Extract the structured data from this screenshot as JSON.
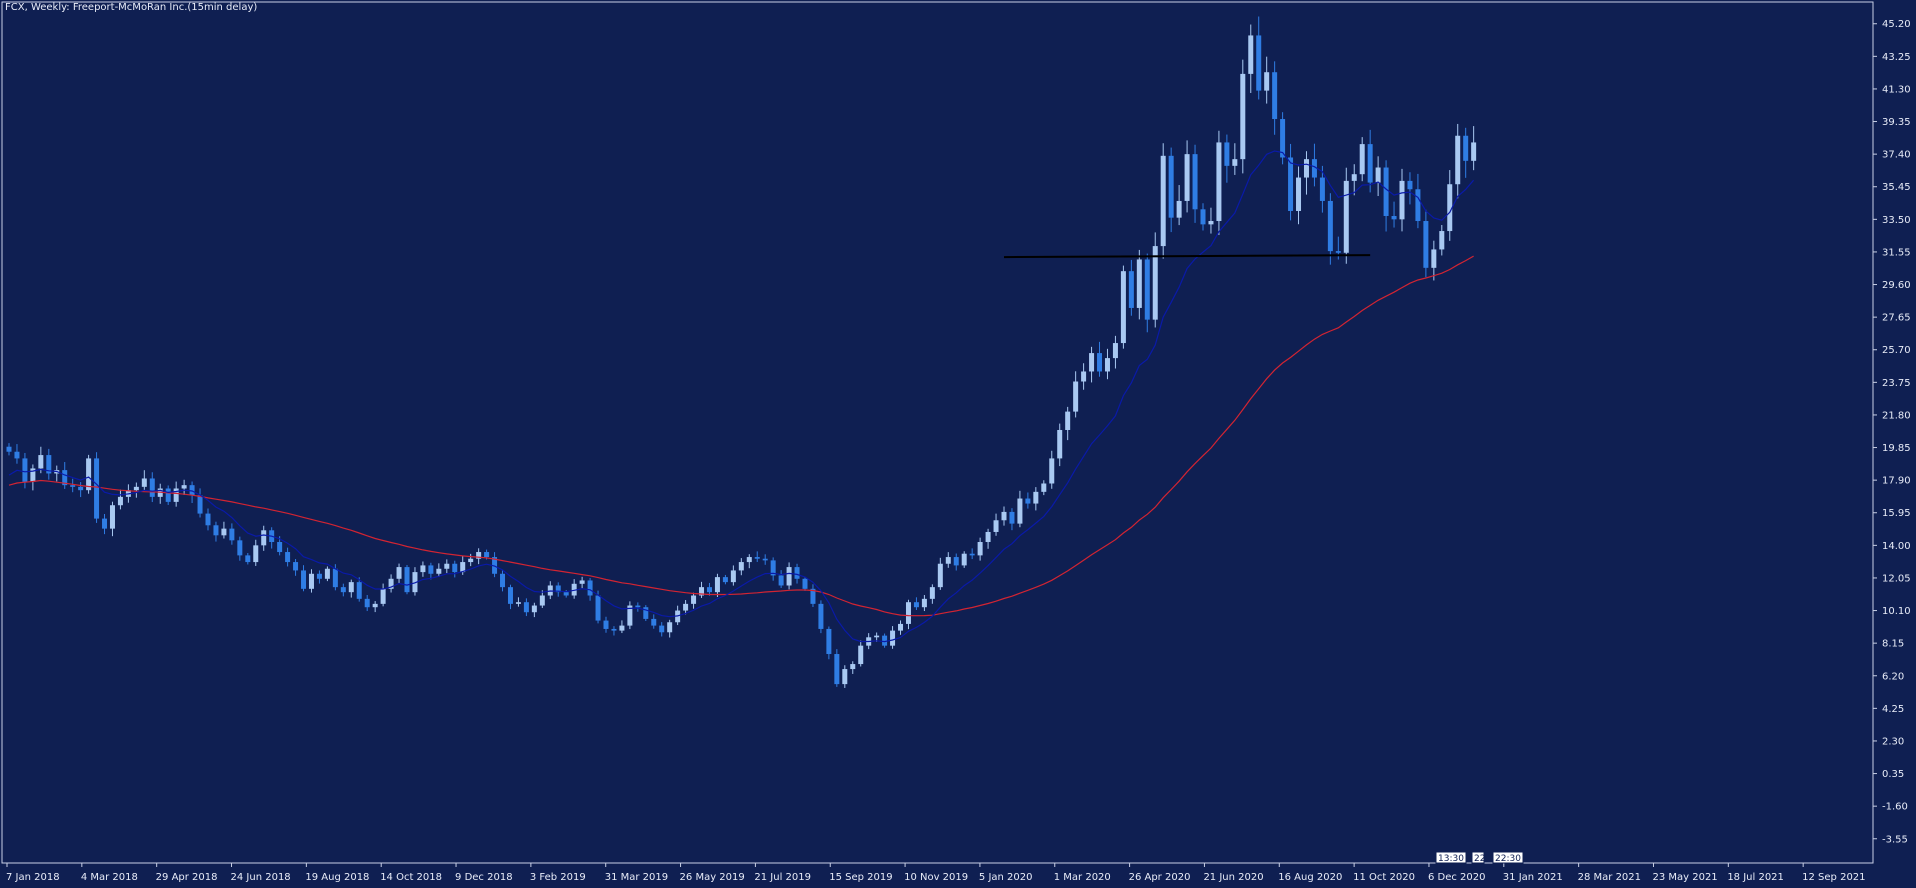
{
  "title": "FCX, Weekly:  Freeport-McMoRan Inc.(15min delay)",
  "colors": {
    "background": "#0f1f52",
    "frame": "#c8cfe6",
    "text": "#e8ecf8",
    "bull": "#a9c9f2",
    "bear": "#2f7de4",
    "ma_fast": "#0a1aa8",
    "ma_slow": "#d22432",
    "support": "#000000"
  },
  "time_marker": {
    "boxes": [
      "13:30",
      "22",
      "22:30"
    ]
  },
  "chart_data": {
    "type": "candlestick",
    "title": "FCX, Weekly:  Freeport-McMoRan Inc.(15min delay)",
    "ylim": [
      -5.0,
      46.5
    ],
    "y_ticks": [
      "45.20",
      "43.25",
      "41.30",
      "39.35",
      "37.40",
      "35.45",
      "33.50",
      "31.55",
      "29.60",
      "27.65",
      "25.70",
      "23.75",
      "21.80",
      "19.85",
      "17.90",
      "15.95",
      "14.00",
      "12.05",
      "10.10",
      "8.15",
      "6.20",
      "4.25",
      "2.30",
      "0.35",
      "-1.60",
      "-3.55"
    ],
    "x_labels": [
      "7 Jan 2018",
      "4 Mar 2018",
      "29 Apr 2018",
      "24 Jun 2018",
      "19 Aug 2018",
      "14 Oct 2018",
      "9 Dec 2018",
      "3 Feb 2019",
      "31 Mar 2019",
      "26 May 2019",
      "21 Jul 2019",
      "15 Sep 2019",
      "10 Nov 2019",
      "5 Jan 2020",
      "1 Mar 2020",
      "26 Apr 2020",
      "21 Jun 2020",
      "16 Aug 2020",
      "11 Oct 2020",
      "6 Dec 2020",
      "31 Jan 2021",
      "28 Mar 2021",
      "23 May 2021",
      "18 Jul 2021",
      "12 Sep 2021"
    ],
    "close": [
      19.6,
      19.2,
      17.8,
      18.6,
      19.4,
      18.3,
      18.5,
      17.6,
      17.5,
      17.3,
      19.2,
      15.6,
      15.0,
      16.4,
      16.9,
      17.3,
      17.5,
      18.0,
      16.9,
      17.4,
      16.6,
      17.4,
      17.6,
      17.0,
      15.9,
      15.2,
      14.6,
      15.0,
      14.3,
      13.4,
      13.0,
      14.0,
      14.9,
      14.2,
      13.6,
      13.0,
      12.5,
      11.4,
      12.3,
      12.0,
      12.6,
      11.5,
      11.2,
      11.8,
      10.8,
      10.3,
      10.5,
      11.4,
      12.0,
      12.7,
      11.2,
      12.4,
      12.8,
      12.3,
      12.6,
      12.9,
      12.4,
      13.0,
      13.2,
      13.6,
      13.3,
      12.3,
      11.5,
      10.5,
      10.6,
      10.0,
      10.4,
      11.0,
      11.6,
      11.2,
      11.0,
      11.7,
      11.9,
      11.0,
      9.5,
      9.0,
      8.9,
      9.2,
      10.4,
      10.3,
      9.6,
      9.2,
      8.8,
      9.4,
      10.1,
      10.5,
      11.0,
      11.5,
      11.2,
      12.1,
      11.8,
      12.5,
      13.0,
      13.3,
      13.2,
      13.1,
      12.2,
      11.6,
      12.7,
      12.0,
      11.4,
      10.5,
      9.0,
      7.5,
      5.7,
      6.6,
      6.9,
      8.0,
      8.5,
      8.6,
      8.0,
      8.9,
      9.3,
      10.6,
      10.3,
      10.8,
      11.5,
      12.9,
      13.3,
      12.8,
      13.5,
      13.4,
      14.2,
      14.8,
      15.5,
      16.0,
      15.3,
      16.8,
      16.5,
      17.2,
      17.7,
      19.2,
      20.9,
      22.0,
      23.8,
      24.4,
      25.5,
      24.4,
      25.2,
      26.1,
      30.4,
      28.2,
      31.1,
      27.5,
      31.9,
      37.3,
      33.6,
      34.6,
      37.4,
      34.1,
      33.2,
      33.4,
      38.1,
      36.7,
      37.1,
      42.2,
      44.5,
      41.2,
      42.3,
      39.5,
      37.2,
      34.0,
      36.0,
      37.1,
      36.0,
      34.6,
      31.6,
      31.5,
      35.8,
      36.2,
      38.0,
      35.7,
      36.6,
      33.7,
      33.5,
      35.8,
      35.3,
      33.4,
      30.6,
      31.7,
      32.8,
      35.6,
      38.5,
      37.0,
      38.1
    ],
    "series": [
      {
        "name": "",
        "values": [
          17.6,
          17.73,
          17.78,
          17.82,
          17.88,
          17.84,
          17.78,
          17.72,
          17.65,
          17.58,
          17.52,
          17.49,
          17.42,
          17.35,
          17.3,
          17.26,
          17.23,
          17.21,
          17.2,
          17.18,
          17.14,
          17.11,
          17.06,
          17.0,
          16.93,
          16.84,
          16.76,
          16.68,
          16.6,
          16.5,
          16.4,
          16.3,
          16.22,
          16.12,
          16.02,
          15.92,
          15.8,
          15.67,
          15.55,
          15.43,
          15.32,
          15.18,
          15.03,
          14.9,
          14.74,
          14.57,
          14.41,
          14.29,
          14.17,
          14.06,
          13.93,
          13.83,
          13.73,
          13.64,
          13.56,
          13.49,
          13.43,
          13.37,
          13.33,
          13.29,
          13.25,
          13.18,
          13.09,
          13.0,
          12.91,
          12.81,
          12.72,
          12.62,
          12.54,
          12.47,
          12.4,
          12.33,
          12.25,
          12.18,
          12.07,
          11.96,
          11.86,
          11.76,
          11.7,
          11.61,
          11.53,
          11.45,
          11.37,
          11.29,
          11.23,
          11.17,
          11.12,
          11.09,
          11.06,
          11.06,
          11.06,
          11.07,
          11.09,
          11.13,
          11.16,
          11.21,
          11.24,
          11.27,
          11.31,
          11.33,
          11.33,
          11.3,
          11.21,
          11.06,
          10.85,
          10.67,
          10.49,
          10.37,
          10.27,
          10.16,
          10.02,
          9.91,
          9.83,
          9.8,
          9.79,
          9.8,
          9.82,
          9.91,
          10.0,
          10.08,
          10.19,
          10.28,
          10.4,
          10.52,
          10.66,
          10.82,
          10.96,
          11.14,
          11.31,
          11.49,
          11.68,
          11.91,
          12.19,
          12.47,
          12.79,
          13.11,
          13.44,
          13.74,
          14.03,
          14.34,
          14.74,
          15.08,
          15.51,
          15.86,
          16.28,
          16.85,
          17.34,
          17.84,
          18.4,
          18.89,
          19.36,
          19.82,
          20.4,
          20.94,
          21.48,
          22.12,
          22.78,
          23.37,
          23.97,
          24.48,
          24.91,
          25.24,
          25.61,
          25.99,
          26.33,
          26.62,
          26.82,
          27.01,
          27.36,
          27.69,
          28.05,
          28.35,
          28.66,
          28.9,
          29.14,
          29.42,
          29.68,
          29.87,
          29.99,
          30.13,
          30.28,
          30.5,
          30.78,
          31.03,
          31.3
        ]
      },
      {
        "name": "",
        "values": [
          18.2,
          18.49,
          18.4,
          18.44,
          18.54,
          18.46,
          18.42,
          18.21,
          18.05,
          17.9,
          18.08,
          17.65,
          17.18,
          17.05,
          17.02,
          17.08,
          17.16,
          17.29,
          17.24,
          17.29,
          17.17,
          17.22,
          17.3,
          17.25,
          17.02,
          16.69,
          16.29,
          16.04,
          15.66,
          15.17,
          14.73,
          14.55,
          14.62,
          14.55,
          14.39,
          14.13,
          13.8,
          13.32,
          13.15,
          12.95,
          12.88,
          12.6,
          12.34,
          12.24,
          11.94,
          11.61,
          11.39,
          11.39,
          11.5,
          11.72,
          11.62,
          11.76,
          11.96,
          12.03,
          12.15,
          12.3,
          12.31,
          12.43,
          12.58,
          12.77,
          12.87,
          12.76,
          12.53,
          12.14,
          11.84,
          11.48,
          11.24,
          11.2,
          11.27,
          11.26,
          11.23,
          11.31,
          11.41,
          11.34,
          11.03,
          10.69,
          10.38,
          10.2,
          10.23,
          10.25,
          10.14,
          9.99,
          9.8,
          9.73,
          9.78,
          9.93,
          10.12,
          10.37,
          10.52,
          10.81,
          11.0,
          11.27,
          11.57,
          11.86,
          12.1,
          12.31,
          12.33,
          12.25,
          12.32,
          12.26,
          12.1,
          11.79,
          11.28,
          10.56,
          9.58,
          8.91,
          8.4,
          8.25,
          8.25,
          8.29,
          8.24,
          8.34,
          8.49,
          8.86,
          9.09,
          9.39,
          9.76,
          10.3,
          10.8,
          11.16,
          11.59,
          11.92,
          12.34,
          12.79,
          13.27,
          13.77,
          14.1,
          14.58,
          14.94,
          15.33,
          15.73,
          16.32,
          17.03,
          17.74,
          18.56,
          19.32,
          20.08,
          20.6,
          21.15,
          21.74,
          22.96,
          23.72,
          24.76,
          25.12,
          25.98,
          27.65,
          28.54,
          29.44,
          30.56,
          31.13,
          31.54,
          31.93,
          32.76,
          33.32,
          33.88,
          35.01,
          36.17,
          36.74,
          37.39,
          37.59,
          37.5,
          36.87,
          36.75,
          36.8,
          36.65,
          36.35,
          35.52,
          34.82,
          34.95,
          35.1,
          35.55,
          35.57,
          35.73,
          35.31,
          34.95,
          35.08,
          35.13,
          34.81,
          33.99,
          33.58,
          33.45,
          33.92,
          34.87,
          35.29,
          35.84
        ]
      }
    ],
    "support_level": 31.3,
    "legend": "none",
    "grid": false
  }
}
